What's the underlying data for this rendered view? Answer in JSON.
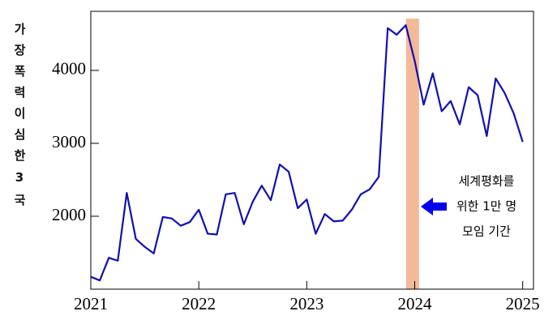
{
  "chart_data": {
    "type": "line",
    "y_label": "가장폭력이심한3국",
    "x": [
      2021,
      2021.083,
      2021.167,
      2021.25,
      2021.333,
      2021.417,
      2021.5,
      2021.583,
      2021.667,
      2021.75,
      2021.833,
      2021.917,
      2022,
      2022.083,
      2022.167,
      2022.25,
      2022.333,
      2022.417,
      2022.5,
      2022.583,
      2022.667,
      2022.75,
      2022.833,
      2022.917,
      2023,
      2023.083,
      2023.167,
      2023.25,
      2023.333,
      2023.417,
      2023.5,
      2023.583,
      2023.667,
      2023.75,
      2023.833,
      2023.917,
      2024,
      2024.083,
      2024.167,
      2024.25,
      2024.333,
      2024.417,
      2024.5,
      2024.583,
      2024.667,
      2024.75,
      2024.833,
      2024.917,
      2025
    ],
    "series": [
      {
        "color": "#1010b0",
        "values": [
          1170,
          1120,
          1430,
          1390,
          2320,
          1690,
          1580,
          1490,
          1990,
          1970,
          1870,
          1920,
          2090,
          1760,
          1750,
          2300,
          2320,
          1890,
          2200,
          2420,
          2220,
          2710,
          2610,
          2110,
          2230,
          1760,
          2030,
          1930,
          1940,
          2090,
          2300,
          2370,
          2540,
          4580,
          4490,
          4620,
          4130,
          3530,
          3960,
          3440,
          3580,
          3260,
          3770,
          3660,
          3100,
          3890,
          3690,
          3410,
          3020
        ]
      }
    ],
    "xlim": [
      2021,
      2025.1
    ],
    "xticks": [
      2021,
      2022,
      2023,
      2024,
      2025
    ],
    "ylim": [
      1000,
      4810
    ],
    "yticks": [
      2000,
      3000,
      4000
    ],
    "shade": {
      "range": [
        2023.92,
        2024.04
      ],
      "color": "#f4b999"
    },
    "annotation": [
      "세계평화를",
      "위한 1만 명",
      "모임 기간"
    ],
    "arrow_color": "#0000ee"
  }
}
